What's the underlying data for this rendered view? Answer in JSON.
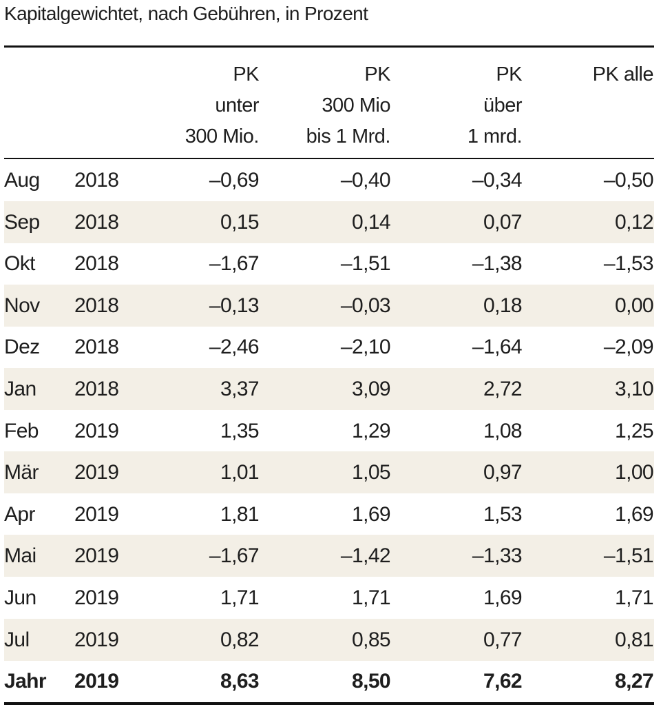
{
  "caption": "Kapitalgewichtet, nach Gebühren, in Prozent",
  "columns": [
    "PK\nunter\n300 Mio.",
    "PK\n300 Mio\nbis 1 Mrd.",
    "PK\nüber\n1 mrd.",
    "PK alle"
  ],
  "shade_color": "#f3efe6",
  "rows": [
    {
      "month": "Aug",
      "year": "2018",
      "values": [
        "–0,69",
        "–0,40",
        "–0,34",
        "–0,50"
      ]
    },
    {
      "month": "Sep",
      "year": "2018",
      "values": [
        "0,15",
        "0,14",
        "0,07",
        "0,12"
      ]
    },
    {
      "month": "Okt",
      "year": "2018",
      "values": [
        "–1,67",
        "–1,51",
        "–1,38",
        "–1,53"
      ]
    },
    {
      "month": "Nov",
      "year": "2018",
      "values": [
        "–0,13",
        "–0,03",
        "0,18",
        "0,00"
      ]
    },
    {
      "month": "Dez",
      "year": "2018",
      "values": [
        "–2,46",
        "–2,10",
        "–1,64",
        "–2,09"
      ]
    },
    {
      "month": "Jan",
      "year": "2018",
      "values": [
        "3,37",
        "3,09",
        "2,72",
        "3,10"
      ]
    },
    {
      "month": "Feb",
      "year": "2019",
      "values": [
        "1,35",
        "1,29",
        "1,08",
        "1,25"
      ]
    },
    {
      "month": "Mär",
      "year": "2019",
      "values": [
        "1,01",
        "1,05",
        "0,97",
        "1,00"
      ]
    },
    {
      "month": "Apr",
      "year": "2019",
      "values": [
        "1,81",
        "1,69",
        "1,53",
        "1,69"
      ]
    },
    {
      "month": "Mai",
      "year": "2019",
      "values": [
        "–1,67",
        "–1,42",
        "–1,33",
        "–1,51"
      ]
    },
    {
      "month": "Jun",
      "year": "2019",
      "values": [
        "1,71",
        "1,71",
        "1,69",
        "1,71"
      ]
    },
    {
      "month": "Jul",
      "year": "2019",
      "values": [
        "0,82",
        "0,85",
        "0,77",
        "0,81"
      ]
    }
  ],
  "total": {
    "month": "Jahr",
    "year": "2019",
    "values": [
      "8,63",
      "8,50",
      "7,62",
      "8,27"
    ]
  }
}
